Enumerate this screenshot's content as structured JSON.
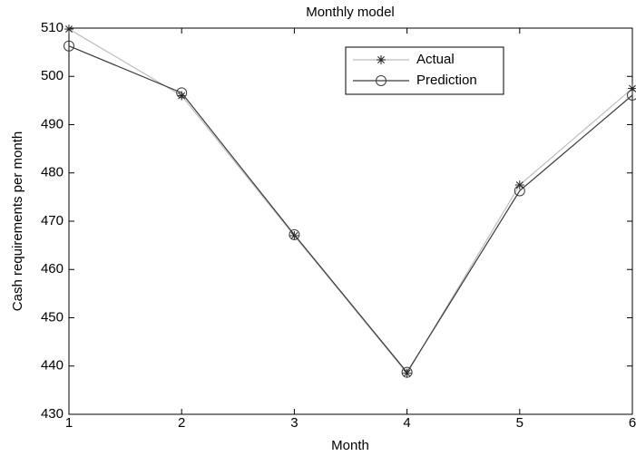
{
  "chart_data": {
    "type": "line",
    "title": "Monthly model",
    "x_label": "Month",
    "y_label": "Cash requirements per month",
    "x": [
      1,
      2,
      3,
      4,
      5,
      6
    ],
    "series": [
      {
        "name": "Actual",
        "color": "#bdbdbd",
        "marker": "*",
        "values": [
          509.8,
          496,
          467,
          438.5,
          477.5,
          497.5
        ]
      },
      {
        "name": "Prediction",
        "color": "#3a3a3a",
        "marker": "o",
        "values": [
          506.3,
          496.6,
          467.2,
          438.7,
          476.3,
          496.1
        ]
      }
    ],
    "xlim": [
      1,
      6
    ],
    "xticks": [
      1,
      2,
      3,
      4,
      5,
      6
    ],
    "ylim": [
      430,
      510
    ],
    "yticks": [
      430,
      440,
      450,
      460,
      470,
      480,
      490,
      500,
      510
    ],
    "grid": false,
    "legend": "upper right"
  }
}
